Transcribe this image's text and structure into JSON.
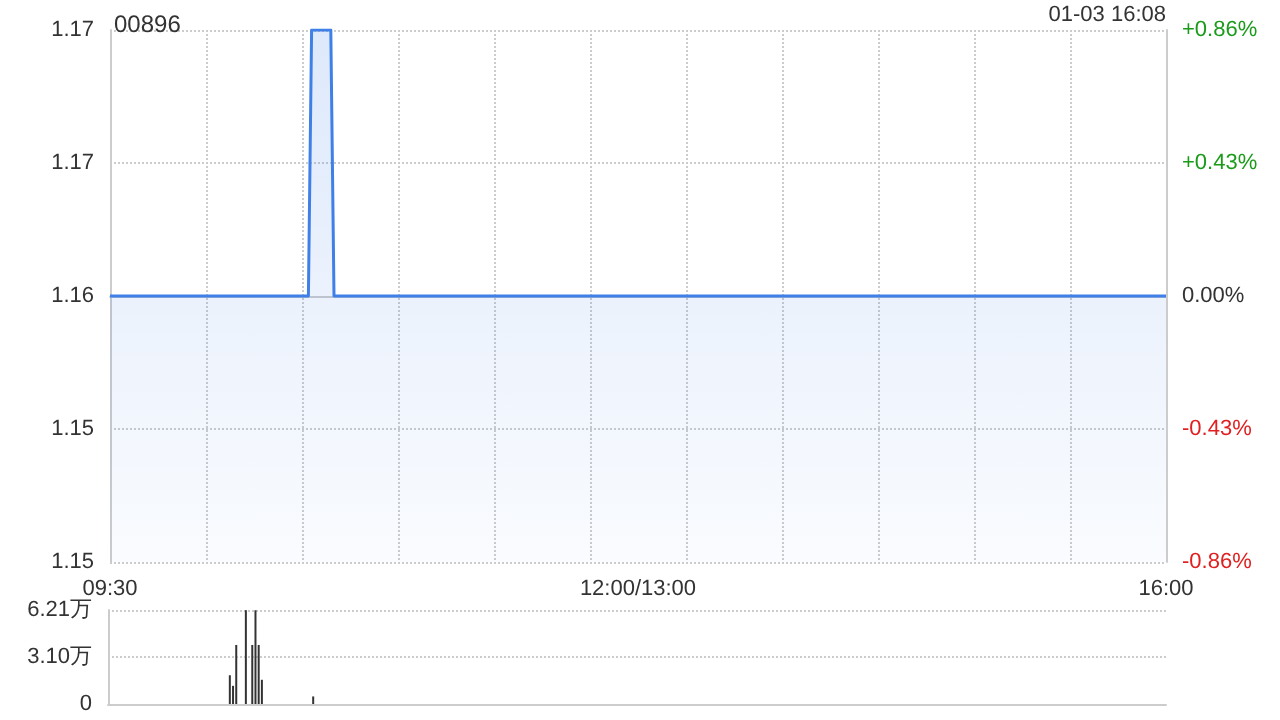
{
  "chart_data": [
    {
      "type": "area",
      "title": "00896",
      "annotations": [
        "01-03 16:08"
      ],
      "categories": [
        "09:30",
        null,
        null,
        null,
        null,
        null,
        null,
        null,
        null,
        null,
        null,
        null,
        null,
        null,
        null,
        null,
        null,
        null,
        null,
        null,
        null,
        null,
        null,
        null,
        null,
        null,
        null,
        null,
        null,
        null,
        null,
        null,
        null,
        null,
        null,
        null,
        null,
        null,
        null,
        null,
        null,
        null,
        null,
        null,
        null,
        null,
        null,
        null,
        null,
        null,
        null,
        null,
        null,
        null,
        null,
        null,
        null,
        null,
        null,
        null,
        null,
        null,
        null,
        null,
        null,
        null,
        null,
        null,
        null,
        null,
        null,
        null,
        null,
        null,
        null,
        null,
        null,
        null,
        null,
        null,
        null,
        null,
        null,
        null,
        null,
        null,
        null,
        null,
        null,
        null,
        null,
        null,
        null,
        null,
        null,
        null,
        null,
        null,
        null,
        null,
        null,
        null,
        null,
        null,
        null,
        null,
        null,
        null,
        null,
        null,
        null,
        null,
        null,
        null,
        null,
        null,
        null,
        null,
        null,
        null,
        null,
        null,
        null,
        null,
        null,
        null,
        null,
        null,
        null,
        null,
        null,
        null,
        null,
        null,
        null,
        null,
        null,
        null,
        null,
        null,
        null,
        null,
        null,
        null,
        null,
        null,
        null,
        null,
        null,
        null,
        null,
        null,
        null,
        null,
        null,
        null,
        null,
        null,
        null,
        null,
        null,
        null,
        null,
        null,
        null,
        "12:00/13:00",
        null,
        null,
        null,
        null,
        null,
        null,
        null,
        null,
        null,
        null,
        null,
        null,
        null,
        null,
        null,
        null,
        null,
        null,
        null,
        null,
        null,
        null,
        null,
        null,
        null,
        null,
        null,
        null,
        null,
        null,
        null,
        null,
        null,
        null,
        null,
        null,
        null,
        null,
        null,
        null,
        null,
        null,
        null,
        null,
        null,
        null,
        null,
        null,
        null,
        null,
        null,
        null,
        null,
        null,
        null,
        null,
        null,
        null,
        null,
        null,
        null,
        null,
        null,
        null,
        null,
        null,
        null,
        null,
        null,
        null,
        null,
        null,
        null,
        null,
        null,
        null,
        null,
        null,
        null,
        null,
        null,
        null,
        null,
        null,
        null,
        null,
        null,
        null,
        null,
        null,
        null,
        null,
        null,
        null,
        null,
        null,
        null,
        null,
        null,
        null,
        null,
        null,
        null,
        null,
        null,
        null,
        null,
        null,
        null,
        null,
        null,
        null,
        null,
        null,
        null,
        null,
        null,
        null,
        null,
        null,
        null,
        null,
        null,
        null,
        null,
        null,
        null,
        null,
        null,
        null,
        null,
        null,
        null,
        null,
        null,
        null,
        null,
        null,
        null,
        null,
        null,
        null,
        null,
        null,
        null,
        null,
        null,
        null,
        null,
        null,
        null,
        null,
        null,
        null,
        null,
        null,
        null,
        null,
        null,
        null,
        null,
        null,
        null,
        null,
        "16:00"
      ],
      "series": [
        {
          "color": "#3f7fe8",
          "values": [
            1.16,
            1.16,
            1.16,
            1.16,
            1.16,
            1.16,
            1.16,
            1.16,
            1.16,
            1.16,
            1.16,
            1.16,
            1.16,
            1.16,
            1.16,
            1.16,
            1.16,
            1.16,
            1.16,
            1.16,
            1.16,
            1.16,
            1.16,
            1.16,
            1.16,
            1.16,
            1.16,
            1.16,
            1.16,
            1.16,
            1.16,
            1.16,
            1.16,
            1.16,
            1.16,
            1.16,
            1.16,
            1.16,
            1.16,
            1.16,
            1.16,
            1.16,
            1.16,
            1.16,
            1.16,
            1.16,
            1.16,
            1.16,
            1.16,
            1.16,
            1.16,
            1.16,
            1.16,
            1.16,
            1.16,
            1.16,
            1.16,
            1.16,
            1.16,
            1.16,
            1.16,
            1.16,
            1.16,
            1.17,
            1.17,
            1.17,
            1.17,
            1.17,
            1.17,
            1.17,
            1.16,
            1.16,
            1.16,
            1.16,
            1.16,
            1.16,
            1.16,
            1.16,
            1.16,
            1.16,
            1.16,
            1.16,
            1.16,
            1.16,
            1.16,
            1.16,
            1.16,
            1.16,
            1.16,
            1.16,
            1.16,
            1.16,
            1.16,
            1.16,
            1.16,
            1.16,
            1.16,
            1.16,
            1.16,
            1.16,
            1.16,
            1.16,
            1.16,
            1.16,
            1.16,
            1.16,
            1.16,
            1.16,
            1.16,
            1.16,
            1.16,
            1.16,
            1.16,
            1.16,
            1.16,
            1.16,
            1.16,
            1.16,
            1.16,
            1.16,
            1.16,
            1.16,
            1.16,
            1.16,
            1.16,
            1.16,
            1.16,
            1.16,
            1.16,
            1.16,
            1.16,
            1.16,
            1.16,
            1.16,
            1.16,
            1.16,
            1.16,
            1.16,
            1.16,
            1.16,
            1.16,
            1.16,
            1.16,
            1.16,
            1.16,
            1.16,
            1.16,
            1.16,
            1.16,
            1.16,
            1.16,
            1.16,
            1.16,
            1.16,
            1.16,
            1.16,
            1.16,
            1.16,
            1.16,
            1.16,
            1.16,
            1.16,
            1.16,
            1.16,
            1.16,
            1.16,
            1.16,
            1.16,
            1.16,
            1.16,
            1.16,
            1.16,
            1.16,
            1.16,
            1.16,
            1.16,
            1.16,
            1.16,
            1.16,
            1.16,
            1.16,
            1.16,
            1.16,
            1.16,
            1.16,
            1.16,
            1.16,
            1.16,
            1.16,
            1.16,
            1.16,
            1.16,
            1.16,
            1.16,
            1.16,
            1.16,
            1.16,
            1.16,
            1.16,
            1.16,
            1.16,
            1.16,
            1.16,
            1.16,
            1.16,
            1.16,
            1.16,
            1.16,
            1.16,
            1.16,
            1.16,
            1.16,
            1.16,
            1.16,
            1.16,
            1.16,
            1.16,
            1.16,
            1.16,
            1.16,
            1.16,
            1.16,
            1.16,
            1.16,
            1.16,
            1.16,
            1.16,
            1.16,
            1.16,
            1.16,
            1.16,
            1.16,
            1.16,
            1.16,
            1.16,
            1.16,
            1.16,
            1.16,
            1.16,
            1.16,
            1.16,
            1.16,
            1.16,
            1.16,
            1.16,
            1.16,
            1.16,
            1.16,
            1.16,
            1.16,
            1.16,
            1.16,
            1.16,
            1.16,
            1.16,
            1.16,
            1.16,
            1.16,
            1.16,
            1.16,
            1.16,
            1.16,
            1.16,
            1.16,
            1.16,
            1.16,
            1.16,
            1.16,
            1.16,
            1.16,
            1.16,
            1.16,
            1.16,
            1.16,
            1.16,
            1.16,
            1.16,
            1.16,
            1.16,
            1.16,
            1.16,
            1.16,
            1.16,
            1.16,
            1.16,
            1.16,
            1.16,
            1.16,
            1.16,
            1.16,
            1.16,
            1.16,
            1.16,
            1.16,
            1.16,
            1.16,
            1.16,
            1.16,
            1.16,
            1.16,
            1.16,
            1.16,
            1.16,
            1.16,
            1.16,
            1.16,
            1.16,
            1.16,
            1.16,
            1.16,
            1.16,
            1.16,
            1.16,
            1.16,
            1.16,
            1.16,
            1.16,
            1.16,
            1.16,
            1.16,
            1.16,
            1.16,
            1.16,
            1.16,
            1.16,
            1.16,
            1.16,
            1.16,
            1.16,
            1.16,
            1.16
          ]
        }
      ],
      "ylim": [
        1.15,
        1.17
      ],
      "yticks": [
        {
          "value": 1.15,
          "label": "1.15"
        },
        {
          "value": 1.155,
          "label": "1.15"
        },
        {
          "value": 1.16,
          "label": "1.16"
        },
        {
          "value": 1.165,
          "label": "1.17"
        },
        {
          "value": 1.17,
          "label": "1.17"
        }
      ],
      "y2lim": [
        -0.86,
        0.86
      ],
      "y2ticks": [
        {
          "value": -0.86,
          "label": "-0.86%"
        },
        {
          "value": -0.43,
          "label": "-0.43%"
        },
        {
          "value": 0,
          "label": "0.00%"
        },
        {
          "value": 0.43,
          "label": "+0.43%"
        },
        {
          "value": 0.86,
          "label": "+0.86%"
        }
      ],
      "grid": true,
      "marker": "none"
    },
    {
      "type": "bar",
      "categories": [
        null,
        null,
        null,
        null,
        null,
        null,
        null,
        null,
        null,
        null,
        null,
        null,
        null,
        null,
        null,
        null,
        null,
        null,
        null,
        null,
        null,
        null,
        null,
        null,
        null,
        null,
        null,
        null,
        null,
        null,
        null,
        null,
        null,
        null,
        null,
        null,
        null,
        null,
        null,
        null,
        null,
        null,
        null,
        null,
        null,
        null,
        null,
        null,
        null,
        null,
        null,
        null,
        null,
        null,
        null,
        null,
        null,
        null,
        null,
        null,
        null,
        null,
        null,
        null,
        null,
        null,
        null,
        null,
        null,
        null,
        null,
        null,
        null,
        null,
        null,
        null,
        null,
        null,
        null,
        null,
        null,
        null,
        null,
        null,
        null,
        null,
        null,
        null,
        null,
        null,
        null,
        null,
        null,
        null,
        null,
        null,
        null,
        null,
        null,
        null,
        null,
        null,
        null,
        null,
        null,
        null,
        null,
        null,
        null,
        null,
        null,
        null,
        null,
        null,
        null,
        null,
        null,
        null,
        null,
        null,
        null,
        null,
        null,
        null,
        null,
        null,
        null,
        null,
        null,
        null,
        null,
        null,
        null,
        null,
        null,
        null,
        null,
        null,
        null,
        null,
        null,
        null,
        null,
        null,
        null,
        null,
        null,
        null,
        null,
        null,
        null,
        null,
        null,
        null,
        null,
        null,
        null,
        null,
        null,
        null,
        null,
        null,
        null,
        null,
        null,
        null,
        null,
        null,
        null,
        null,
        null,
        null,
        null,
        null,
        null,
        null,
        null,
        null,
        null,
        null,
        null,
        null,
        null,
        null,
        null,
        null,
        null,
        null,
        null,
        null,
        null,
        null,
        null,
        null,
        null,
        null,
        null,
        null,
        null,
        null,
        null,
        null,
        null,
        null,
        null,
        null,
        null,
        null,
        null,
        null,
        null,
        null,
        null,
        null,
        null,
        null,
        null,
        null,
        null,
        null,
        null,
        null,
        null,
        null,
        null,
        null,
        null,
        null,
        null,
        null,
        null,
        null,
        null,
        null,
        null,
        null,
        null,
        null,
        null,
        null,
        null,
        null,
        null,
        null,
        null,
        null,
        null,
        null,
        null,
        null,
        null,
        null,
        null,
        null,
        null,
        null,
        null,
        null,
        null,
        null,
        null,
        null,
        null,
        null,
        null,
        null,
        null,
        null,
        null,
        null,
        null,
        null,
        null,
        null,
        null,
        null,
        null,
        null,
        null,
        null,
        null,
        null,
        null,
        null,
        null,
        null,
        null,
        null,
        null,
        null,
        null,
        null,
        null,
        null,
        null,
        null,
        null,
        null,
        null,
        null,
        null,
        null,
        null,
        null,
        null,
        null,
        null,
        null,
        null,
        null,
        null,
        null,
        null,
        null,
        null,
        null,
        null,
        null,
        null,
        null,
        null,
        null,
        null,
        null,
        null,
        null,
        null,
        null,
        null,
        null,
        null
      ],
      "values": [
        0,
        0,
        0,
        0,
        0,
        0,
        0,
        0,
        0,
        0,
        0,
        0,
        0,
        0,
        0,
        0,
        0,
        0,
        0,
        0,
        0,
        0,
        0,
        0,
        0,
        0,
        0,
        0,
        0,
        0,
        0,
        0,
        0,
        0,
        0,
        0,
        0,
        0,
        1.9,
        1.2,
        3.9,
        0,
        0,
        6.2,
        0,
        3.9,
        6.2,
        3.9,
        1.6,
        0,
        0,
        0,
        0,
        0,
        0,
        0,
        0,
        0,
        0,
        0,
        0,
        0,
        0,
        0,
        0.5,
        0,
        0,
        0,
        0,
        0,
        0,
        0,
        0,
        0,
        0,
        0,
        0,
        0,
        0,
        0,
        0,
        0,
        0,
        0,
        0,
        0,
        0,
        0,
        0,
        0,
        0,
        0,
        0,
        0,
        0,
        0,
        0,
        0,
        0,
        0,
        0,
        0,
        0,
        0,
        0,
        0,
        0,
        0,
        0,
        0,
        0,
        0,
        0,
        0,
        0,
        0,
        0,
        0,
        0,
        0,
        0,
        0,
        0,
        0,
        0,
        0,
        0,
        0,
        0,
        0,
        0,
        0,
        0,
        0,
        0,
        0,
        0,
        0,
        0,
        0,
        0,
        0,
        0,
        0,
        0,
        0,
        0,
        0,
        0,
        0,
        0,
        0,
        0,
        0,
        0,
        0,
        0,
        0,
        0,
        0,
        0,
        0,
        0,
        0,
        0,
        0,
        0,
        0,
        0,
        0,
        0,
        0,
        0,
        0,
        0,
        0,
        0,
        0,
        0,
        0,
        0,
        0,
        0,
        0,
        0,
        0,
        0,
        0,
        0,
        0,
        0,
        0,
        0,
        0,
        0,
        0,
        0,
        0,
        0,
        0,
        0,
        0,
        0,
        0,
        0,
        0,
        0,
        0,
        0,
        0,
        0,
        0,
        0,
        0,
        0,
        0,
        0,
        0,
        0,
        0,
        0,
        0,
        0,
        0,
        0,
        0,
        0,
        0,
        0,
        0,
        0,
        0,
        0,
        0,
        0,
        0,
        0,
        0,
        0,
        0,
        0,
        0,
        0,
        0,
        0,
        0,
        0,
        0,
        0,
        0,
        0,
        0,
        0,
        0,
        0,
        0,
        0,
        0,
        0,
        0,
        0,
        0,
        0,
        0,
        0,
        0,
        0,
        0,
        0,
        0,
        0,
        0,
        0,
        0,
        0,
        0,
        0,
        0,
        0,
        0,
        0,
        0,
        0,
        0,
        0,
        0,
        0,
        0,
        0,
        0,
        0,
        0,
        0,
        0,
        0,
        0,
        0,
        0,
        0,
        0,
        0,
        0,
        0,
        0,
        0,
        0,
        0,
        0,
        0,
        0,
        0,
        0,
        0,
        0,
        0,
        0,
        0,
        0,
        0,
        0,
        0,
        0,
        0,
        0,
        0,
        0,
        0,
        0,
        0,
        0,
        0
      ],
      "color": "#333333",
      "ylim": [
        0,
        6.21
      ],
      "yticks": [
        0,
        {
          "value": 3.1,
          "label": "3.10万"
        },
        {
          "value": 6.21,
          "label": "6.21万"
        }
      ],
      "grid": "y"
    }
  ]
}
